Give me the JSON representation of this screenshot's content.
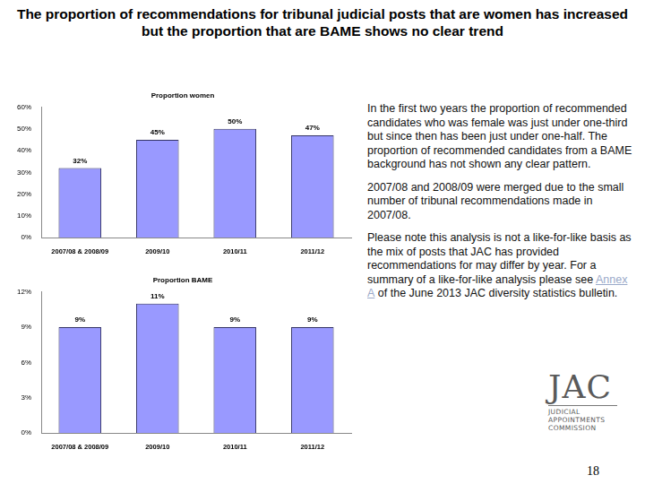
{
  "slide": {
    "title": "The proportion of recommendations for tribunal judicial posts that are women has increased but the proportion that are BAME shows no clear trend",
    "paragraphs": [
      {
        "text": "In the first two years the proportion of recommended candidates who was female was just under one-third but since then has been just under one-half. The proportion of recommended candidates from a BAME background has not shown any clear pattern."
      },
      {
        "text": "2007/08 and 2008/09 were merged due to the small number of tribunal recommendations made in 2007/08."
      },
      {
        "text": "Please note this analysis is not a like-for-like basis as the mix of posts that JAC has provided recommendations for may differ by year. For a summary of a like-for-like analysis please see ",
        "link": "Annex A",
        "text_after": " of the June 2013 JAC diversity statistics bulletin."
      }
    ],
    "logo": {
      "mark": "JAC",
      "lines": [
        "JUDICIAL",
        "APPOINTMENTS",
        "COMMISSION"
      ]
    },
    "page_number": 18
  },
  "chart_data": [
    {
      "type": "bar",
      "title": "Proportion women",
      "categories": [
        "2007/08 & 2008/09",
        "2009/10",
        "2010/11",
        "2011/12"
      ],
      "values": [
        32,
        45,
        50,
        47
      ],
      "value_labels": [
        "32%",
        "45%",
        "50%",
        "47%"
      ],
      "data_labels": true,
      "color": "#9999ff",
      "ylim": [
        0,
        60
      ],
      "yticks": [
        {
          "value": 0,
          "label": "0%"
        },
        {
          "value": 10,
          "label": "10%"
        },
        {
          "value": 20,
          "label": "20%"
        },
        {
          "value": 30,
          "label": "30%"
        },
        {
          "value": 40,
          "label": "40%"
        },
        {
          "value": 50,
          "label": "50%"
        },
        {
          "value": 60,
          "label": "60%"
        }
      ],
      "grid": false
    },
    {
      "type": "bar",
      "title": "Proportion BAME",
      "categories": [
        "2007/08 & 2008/09",
        "2009/10",
        "2010/11",
        "2011/12"
      ],
      "values": [
        9,
        11,
        9,
        9
      ],
      "value_labels": [
        "9%",
        "11%",
        "9%",
        "9%"
      ],
      "data_labels": true,
      "color": "#9999ff",
      "ylim": [
        0,
        12
      ],
      "yticks": [
        {
          "value": 0,
          "label": "0%"
        },
        {
          "value": 3,
          "label": "3%"
        },
        {
          "value": 6,
          "label": "6%"
        },
        {
          "value": 9,
          "label": "9%"
        },
        {
          "value": 12,
          "label": "12%"
        }
      ],
      "grid": false
    }
  ]
}
